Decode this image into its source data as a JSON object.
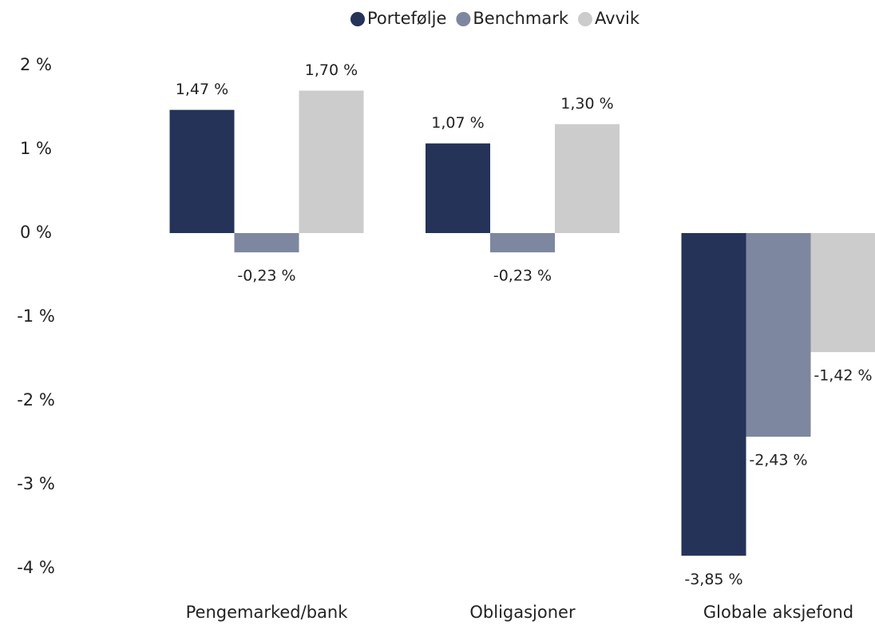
{
  "chart_data": {
    "type": "bar",
    "categories": [
      "Pengemarked/bank",
      "Obligasjoner",
      "Globale aksjefond"
    ],
    "series": [
      {
        "name": "Portefølje",
        "color": "#253358",
        "values": [
          1.47,
          1.07,
          -3.85
        ],
        "value_labels": [
          "1,47 %",
          "1,07 %",
          "-3,85 %"
        ]
      },
      {
        "name": "Benchmark",
        "color": "#7d879f",
        "values": [
          -0.23,
          -0.23,
          -2.43
        ],
        "value_labels": [
          "-0,23 %",
          "-0,23 %",
          "-2,43 %"
        ]
      },
      {
        "name": "Avvik",
        "color": "#cccccc",
        "values": [
          1.7,
          1.3,
          -1.42
        ],
        "value_labels": [
          "1,70 %",
          "1,30 %",
          "-1,42 %"
        ]
      }
    ],
    "ylim": [
      -4,
      2
    ],
    "yticks": [
      {
        "value": 2,
        "label": "2 %"
      },
      {
        "value": 1,
        "label": "1 %"
      },
      {
        "value": 0,
        "label": "0 %"
      },
      {
        "value": -1,
        "label": "-1 %"
      },
      {
        "value": -2,
        "label": "-2 %"
      },
      {
        "value": -3,
        "label": "-3 %"
      },
      {
        "value": -4,
        "label": "-4 %"
      }
    ],
    "grid": false,
    "legend_position": "top"
  }
}
